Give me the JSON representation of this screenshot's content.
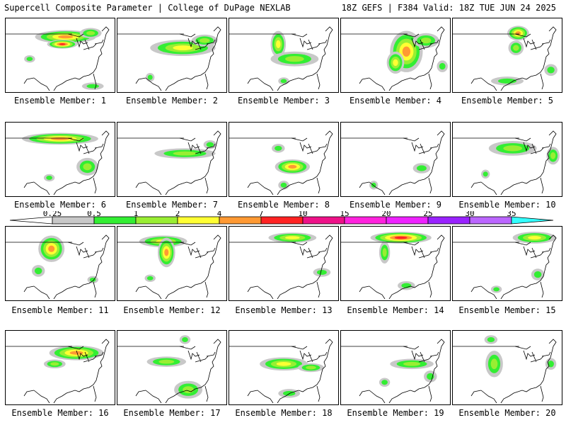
{
  "header": {
    "left": "Supercell Composite Parameter | College of DuPage NEXLAB",
    "right": "18Z GEFS | F384 Valid: 18Z TUE JUN 24 2025"
  },
  "legend": {
    "ticks": [
      "0.25",
      "0.5",
      "1",
      "2",
      "4",
      "7",
      "10",
      "15",
      "20",
      "25",
      "30",
      "35"
    ],
    "colors": [
      "#c8c8c8",
      "#33ee33",
      "#99ee33",
      "#ffff33",
      "#ff9933",
      "#ff2222",
      "#ee1188",
      "#ff22dd",
      "#ee22ff",
      "#9922ff",
      "#bb66ff",
      "#33ffff"
    ]
  },
  "panels": [
    {
      "label": "Ensemble Member: 1",
      "blobs": [
        [
          0.55,
          0.25,
          0.28,
          0.09,
          0.75
        ],
        [
          0.52,
          0.35,
          0.14,
          0.06,
          0.95
        ],
        [
          0.78,
          0.2,
          0.1,
          0.07,
          0.55
        ],
        [
          0.22,
          0.55,
          0.05,
          0.05,
          0.3
        ],
        [
          0.8,
          0.92,
          0.1,
          0.05,
          0.3
        ]
      ]
    },
    {
      "label": "Ensemble Member: 2",
      "blobs": [
        [
          0.6,
          0.4,
          0.3,
          0.11,
          0.6
        ],
        [
          0.8,
          0.3,
          0.12,
          0.08,
          0.5
        ],
        [
          0.3,
          0.8,
          0.04,
          0.06,
          0.25
        ]
      ]
    },
    {
      "label": "Ensemble Member: 3",
      "blobs": [
        [
          0.45,
          0.35,
          0.07,
          0.18,
          0.7
        ],
        [
          0.6,
          0.55,
          0.22,
          0.1,
          0.55
        ],
        [
          0.5,
          0.85,
          0.05,
          0.05,
          0.3
        ]
      ]
    },
    {
      "label": "Ensemble Member: 4",
      "blobs": [
        [
          0.6,
          0.45,
          0.15,
          0.28,
          0.9
        ],
        [
          0.5,
          0.6,
          0.08,
          0.15,
          0.7
        ],
        [
          0.78,
          0.3,
          0.12,
          0.1,
          0.5
        ],
        [
          0.93,
          0.65,
          0.05,
          0.08,
          0.3
        ]
      ]
    },
    {
      "label": "Ensemble Member: 5",
      "blobs": [
        [
          0.6,
          0.2,
          0.1,
          0.1,
          0.85
        ],
        [
          0.58,
          0.4,
          0.07,
          0.1,
          0.5
        ],
        [
          0.5,
          0.85,
          0.15,
          0.06,
          0.4
        ],
        [
          0.9,
          0.7,
          0.06,
          0.08,
          0.3
        ]
      ]
    },
    {
      "label": "Ensemble Member: 6",
      "blobs": [
        [
          0.5,
          0.22,
          0.35,
          0.08,
          0.8
        ],
        [
          0.75,
          0.6,
          0.1,
          0.12,
          0.5
        ],
        [
          0.4,
          0.75,
          0.05,
          0.05,
          0.3
        ]
      ]
    },
    {
      "label": "Ensemble Member: 7",
      "blobs": [
        [
          0.62,
          0.42,
          0.28,
          0.07,
          0.55
        ],
        [
          0.85,
          0.3,
          0.06,
          0.06,
          0.35
        ]
      ]
    },
    {
      "label": "Ensemble Member: 8",
      "blobs": [
        [
          0.58,
          0.6,
          0.16,
          0.1,
          0.85
        ],
        [
          0.45,
          0.35,
          0.06,
          0.06,
          0.35
        ],
        [
          0.5,
          0.85,
          0.05,
          0.06,
          0.35
        ]
      ]
    },
    {
      "label": "Ensemble Member: 9",
      "blobs": [
        [
          0.74,
          0.62,
          0.08,
          0.07,
          0.4
        ],
        [
          0.3,
          0.85,
          0.04,
          0.06,
          0.3
        ]
      ]
    },
    {
      "label": "Ensemble Member: 10",
      "blobs": [
        [
          0.55,
          0.35,
          0.22,
          0.1,
          0.55
        ],
        [
          0.92,
          0.45,
          0.06,
          0.12,
          0.45
        ],
        [
          0.3,
          0.7,
          0.04,
          0.06,
          0.3
        ]
      ]
    },
    {
      "label": "Ensemble Member: 11",
      "blobs": [
        [
          0.42,
          0.3,
          0.12,
          0.18,
          0.85
        ],
        [
          0.3,
          0.6,
          0.06,
          0.08,
          0.35
        ],
        [
          0.8,
          0.72,
          0.05,
          0.05,
          0.25
        ]
      ]
    },
    {
      "label": "Ensemble Member: 12",
      "blobs": [
        [
          0.42,
          0.2,
          0.22,
          0.08,
          0.65
        ],
        [
          0.45,
          0.35,
          0.08,
          0.2,
          0.85
        ],
        [
          0.3,
          0.7,
          0.05,
          0.05,
          0.3
        ]
      ]
    },
    {
      "label": "Ensemble Member: 13",
      "blobs": [
        [
          0.58,
          0.15,
          0.22,
          0.07,
          0.7
        ],
        [
          0.85,
          0.62,
          0.08,
          0.06,
          0.35
        ]
      ]
    },
    {
      "label": "Ensemble Member: 14",
      "blobs": [
        [
          0.55,
          0.15,
          0.28,
          0.08,
          0.95
        ],
        [
          0.4,
          0.35,
          0.05,
          0.15,
          0.55
        ],
        [
          0.6,
          0.8,
          0.08,
          0.06,
          0.3
        ]
      ]
    },
    {
      "label": "Ensemble Member: 15",
      "blobs": [
        [
          0.75,
          0.15,
          0.2,
          0.08,
          0.7
        ],
        [
          0.78,
          0.65,
          0.06,
          0.08,
          0.35
        ],
        [
          0.4,
          0.85,
          0.05,
          0.05,
          0.3
        ]
      ]
    },
    {
      "label": "Ensemble Member: 16",
      "blobs": [
        [
          0.65,
          0.3,
          0.25,
          0.1,
          0.9
        ],
        [
          0.45,
          0.45,
          0.1,
          0.06,
          0.45
        ]
      ]
    },
    {
      "label": "Ensemble Member: 17",
      "blobs": [
        [
          0.45,
          0.42,
          0.18,
          0.07,
          0.45
        ],
        [
          0.65,
          0.8,
          0.13,
          0.12,
          0.55
        ],
        [
          0.62,
          0.12,
          0.05,
          0.06,
          0.35
        ]
      ]
    },
    {
      "label": "Ensemble Member: 18",
      "blobs": [
        [
          0.5,
          0.45,
          0.22,
          0.09,
          0.65
        ],
        [
          0.75,
          0.5,
          0.12,
          0.06,
          0.5
        ],
        [
          0.55,
          0.85,
          0.1,
          0.06,
          0.35
        ]
      ]
    },
    {
      "label": "Ensemble Member: 19",
      "blobs": [
        [
          0.65,
          0.45,
          0.2,
          0.07,
          0.5
        ],
        [
          0.82,
          0.62,
          0.06,
          0.08,
          0.4
        ],
        [
          0.4,
          0.7,
          0.05,
          0.06,
          0.3
        ]
      ]
    },
    {
      "label": "Ensemble Member: 20",
      "blobs": [
        [
          0.38,
          0.45,
          0.08,
          0.18,
          0.45
        ],
        [
          0.35,
          0.12,
          0.06,
          0.06,
          0.35
        ],
        [
          0.9,
          0.45,
          0.05,
          0.08,
          0.3
        ]
      ]
    }
  ]
}
